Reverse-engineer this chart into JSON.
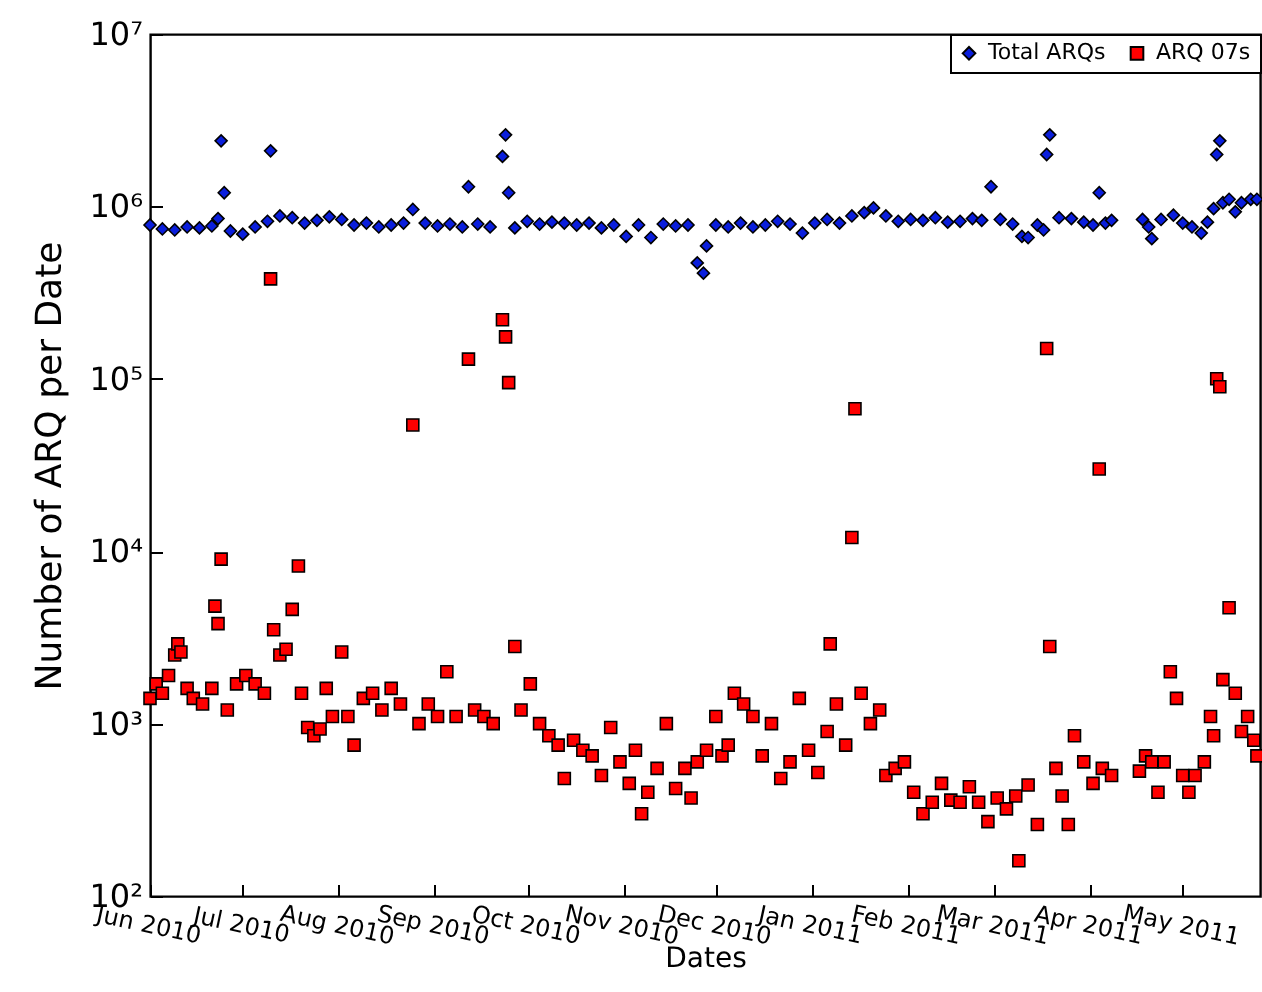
{
  "chart_data": {
    "type": "scatter",
    "xlabel": "Dates",
    "ylabel": "Number of ARQ per Date",
    "log": "y",
    "grid": false,
    "legend": "top right",
    "xlim": [
      "2010-06-01",
      "2011-05-26"
    ],
    "xticks": [
      {
        "value": "2010-06-01",
        "label": "Jun 2010"
      },
      {
        "value": "2010-07-01",
        "label": "Jul 2010"
      },
      {
        "value": "2010-08-01",
        "label": "Aug 2010"
      },
      {
        "value": "2010-09-01",
        "label": "Sep 2010"
      },
      {
        "value": "2010-10-01",
        "label": "Oct 2010"
      },
      {
        "value": "2010-11-01",
        "label": "Nov 2010"
      },
      {
        "value": "2010-12-01",
        "label": "Dec 2010"
      },
      {
        "value": "2011-01-01",
        "label": "Jan 2011"
      },
      {
        "value": "2011-02-01",
        "label": "Feb 2011"
      },
      {
        "value": "2011-03-01",
        "label": "Mar 2011"
      },
      {
        "value": "2011-04-01",
        "label": "Apr 2011"
      },
      {
        "value": "2011-05-01",
        "label": "May 2011"
      }
    ],
    "ylim": [
      100,
      10000000
    ],
    "yticks": [
      {
        "value": 100,
        "label": "10²"
      },
      {
        "value": 1000,
        "label": "10³"
      },
      {
        "value": 10000,
        "label": "10⁴"
      },
      {
        "value": 100000,
        "label": "10⁵"
      },
      {
        "value": 1000000,
        "label": "10⁶"
      },
      {
        "value": 10000000,
        "label": "10⁷"
      }
    ],
    "series": [
      {
        "name": "Total ARQs",
        "color": "#0a1edc",
        "marker": "diamond",
        "x": [
          "2010-06-01",
          "2010-06-05",
          "2010-06-09",
          "2010-06-13",
          "2010-06-17",
          "2010-06-21",
          "2010-06-23",
          "2010-06-24",
          "2010-06-25",
          "2010-06-27",
          "2010-07-01",
          "2010-07-05",
          "2010-07-09",
          "2010-07-10",
          "2010-07-13",
          "2010-07-17",
          "2010-07-21",
          "2010-07-25",
          "2010-07-29",
          "2010-08-02",
          "2010-08-06",
          "2010-08-10",
          "2010-08-14",
          "2010-08-18",
          "2010-08-22",
          "2010-08-25",
          "2010-08-29",
          "2010-09-02",
          "2010-09-06",
          "2010-09-10",
          "2010-09-12",
          "2010-09-15",
          "2010-09-19",
          "2010-09-23",
          "2010-09-24",
          "2010-09-25",
          "2010-09-27",
          "2010-10-01",
          "2010-10-05",
          "2010-10-09",
          "2010-10-13",
          "2010-10-17",
          "2010-10-21",
          "2010-10-25",
          "2010-10-29",
          "2010-11-02",
          "2010-11-06",
          "2010-11-10",
          "2010-11-14",
          "2010-11-18",
          "2010-11-22",
          "2010-11-25",
          "2010-11-27",
          "2010-11-28",
          "2010-12-01",
          "2010-12-05",
          "2010-12-09",
          "2010-12-13",
          "2010-12-17",
          "2010-12-21",
          "2010-12-25",
          "2010-12-29",
          "2011-01-02",
          "2011-01-06",
          "2011-01-10",
          "2011-01-14",
          "2011-01-18",
          "2011-01-21",
          "2011-01-25",
          "2011-01-29",
          "2011-02-02",
          "2011-02-06",
          "2011-02-10",
          "2011-02-14",
          "2011-02-18",
          "2011-02-22",
          "2011-02-25",
          "2011-02-28",
          "2011-03-03",
          "2011-03-07",
          "2011-03-10",
          "2011-03-12",
          "2011-03-15",
          "2011-03-17",
          "2011-03-18",
          "2011-03-19",
          "2011-03-22",
          "2011-03-26",
          "2011-03-30",
          "2011-04-02",
          "2011-04-04",
          "2011-04-06",
          "2011-04-08",
          "2011-04-18",
          "2011-04-20",
          "2011-04-21",
          "2011-04-24",
          "2011-04-28",
          "2011-05-01",
          "2011-05-04",
          "2011-05-07",
          "2011-05-09",
          "2011-05-11",
          "2011-05-12",
          "2011-05-13",
          "2011-05-14",
          "2011-05-16",
          "2011-05-18",
          "2011-05-20",
          "2011-05-23",
          "2011-05-25"
        ],
        "values": [
          780000,
          740000,
          730000,
          760000,
          750000,
          770000,
          850000,
          2400000,
          1200000,
          720000,
          690000,
          760000,
          820000,
          2100000,
          880000,
          860000,
          800000,
          830000,
          870000,
          840000,
          780000,
          800000,
          760000,
          780000,
          800000,
          960000,
          800000,
          770000,
          790000,
          760000,
          1300000,
          790000,
          760000,
          1950000,
          2600000,
          1200000,
          750000,
          820000,
          790000,
          810000,
          800000,
          780000,
          800000,
          750000,
          780000,
          670000,
          780000,
          660000,
          790000,
          770000,
          780000,
          470000,
          410000,
          590000,
          780000,
          760000,
          800000,
          760000,
          780000,
          820000,
          790000,
          700000,
          800000,
          840000,
          800000,
          880000,
          920000,
          980000,
          880000,
          820000,
          840000,
          830000,
          860000,
          810000,
          820000,
          850000,
          830000,
          1300000,
          840000,
          790000,
          670000,
          660000,
          780000,
          730000,
          2000000,
          2600000,
          860000,
          850000,
          810000,
          780000,
          1200000,
          800000,
          830000,
          840000,
          760000,
          650000,
          840000,
          890000,
          800000,
          760000,
          700000,
          810000,
          970000,
          2000000,
          2400000,
          1050000,
          1100000,
          930000,
          1050000,
          1100000,
          1100000
        ]
      },
      {
        "name": "ARQ 07s",
        "color": "#ff0000",
        "marker": "square",
        "x": [
          "2010-06-01",
          "2010-06-03",
          "2010-06-05",
          "2010-06-07",
          "2010-06-09",
          "2010-06-10",
          "2010-06-11",
          "2010-06-13",
          "2010-06-15",
          "2010-06-18",
          "2010-06-21",
          "2010-06-22",
          "2010-06-23",
          "2010-06-24",
          "2010-06-26",
          "2010-06-29",
          "2010-07-02",
          "2010-07-05",
          "2010-07-08",
          "2010-07-10",
          "2010-07-11",
          "2010-07-13",
          "2010-07-15",
          "2010-07-17",
          "2010-07-19",
          "2010-07-20",
          "2010-07-22",
          "2010-07-24",
          "2010-07-26",
          "2010-07-28",
          "2010-07-30",
          "2010-08-02",
          "2010-08-04",
          "2010-08-06",
          "2010-08-09",
          "2010-08-12",
          "2010-08-15",
          "2010-08-18",
          "2010-08-21",
          "2010-08-25",
          "2010-08-27",
          "2010-08-30",
          "2010-09-02",
          "2010-09-05",
          "2010-09-08",
          "2010-09-12",
          "2010-09-14",
          "2010-09-17",
          "2010-09-20",
          "2010-09-23",
          "2010-09-24",
          "2010-09-25",
          "2010-09-27",
          "2010-09-29",
          "2010-10-02",
          "2010-10-05",
          "2010-10-08",
          "2010-10-11",
          "2010-10-13",
          "2010-10-16",
          "2010-10-19",
          "2010-10-22",
          "2010-10-25",
          "2010-10-28",
          "2010-10-31",
          "2010-11-03",
          "2010-11-05",
          "2010-11-07",
          "2010-11-09",
          "2010-11-12",
          "2010-11-15",
          "2010-11-18",
          "2010-11-21",
          "2010-11-23",
          "2010-11-25",
          "2010-11-28",
          "2010-12-01",
          "2010-12-03",
          "2010-12-05",
          "2010-12-07",
          "2010-12-10",
          "2010-12-13",
          "2010-12-16",
          "2010-12-19",
          "2010-12-22",
          "2010-12-25",
          "2010-12-28",
          "2010-12-31",
          "2011-01-03",
          "2011-01-06",
          "2011-01-07",
          "2011-01-09",
          "2011-01-12",
          "2011-01-14",
          "2011-01-15",
          "2011-01-17",
          "2011-01-20",
          "2011-01-23",
          "2011-01-25",
          "2011-01-28",
          "2011-01-31",
          "2011-02-03",
          "2011-02-06",
          "2011-02-09",
          "2011-02-12",
          "2011-02-15",
          "2011-02-18",
          "2011-02-21",
          "2011-02-24",
          "2011-02-27",
          "2011-03-02",
          "2011-03-05",
          "2011-03-08",
          "2011-03-09",
          "2011-03-12",
          "2011-03-15",
          "2011-03-18",
          "2011-03-19",
          "2011-03-21",
          "2011-03-23",
          "2011-03-25",
          "2011-03-27",
          "2011-03-30",
          "2011-04-02",
          "2011-04-04",
          "2011-04-05",
          "2011-04-08",
          "2011-04-17",
          "2011-04-19",
          "2011-04-21",
          "2011-04-23",
          "2011-04-25",
          "2011-04-27",
          "2011-04-29",
          "2011-05-01",
          "2011-05-03",
          "2011-05-05",
          "2011-05-08",
          "2011-05-10",
          "2011-05-11",
          "2011-05-12",
          "2011-05-13",
          "2011-05-14",
          "2011-05-16",
          "2011-05-18",
          "2011-05-20",
          "2011-05-22",
          "2011-05-24",
          "2011-05-25"
        ],
        "values": [
          1400,
          1700,
          1500,
          1900,
          2500,
          2900,
          2600,
          1600,
          1400,
          1300,
          1600,
          4800,
          3800,
          9000,
          1200,
          1700,
          1900,
          1700,
          1500,
          380000,
          3500,
          2500,
          2700,
          4600,
          8200,
          1500,
          950,
          850,
          930,
          1600,
          1100,
          2600,
          1100,
          750,
          1400,
          1500,
          1200,
          1600,
          1300,
          54000,
          1000,
          1300,
          1100,
          2000,
          1100,
          130000,
          1200,
          1100,
          1000,
          220000,
          175000,
          95000,
          2800,
          1200,
          1700,
          1000,
          850,
          750,
          480,
          800,
          700,
          650,
          500,
          950,
          600,
          450,
          700,
          300,
          400,
          550,
          1000,
          420,
          550,
          370,
          600,
          700,
          1100,
          650,
          750,
          1500,
          1300,
          1100,
          650,
          1000,
          480,
          600,
          1400,
          700,
          520,
          900,
          2900,
          1300,
          750,
          12000,
          67000,
          1500,
          1000,
          1200,
          500,
          550,
          600,
          400,
          300,
          350,
          450,
          360,
          350,
          430,
          350,
          270,
          370,
          320,
          380,
          160,
          440,
          260,
          150000,
          2800,
          550,
          380,
          260,
          850,
          600,
          450,
          30000,
          550,
          500,
          530,
          650,
          600,
          400,
          600,
          2000,
          1400,
          500,
          400,
          500,
          600,
          1100,
          850,
          100000,
          90000,
          1800,
          4700,
          1500,
          900,
          1100,
          800,
          650
        ]
      }
    ]
  }
}
